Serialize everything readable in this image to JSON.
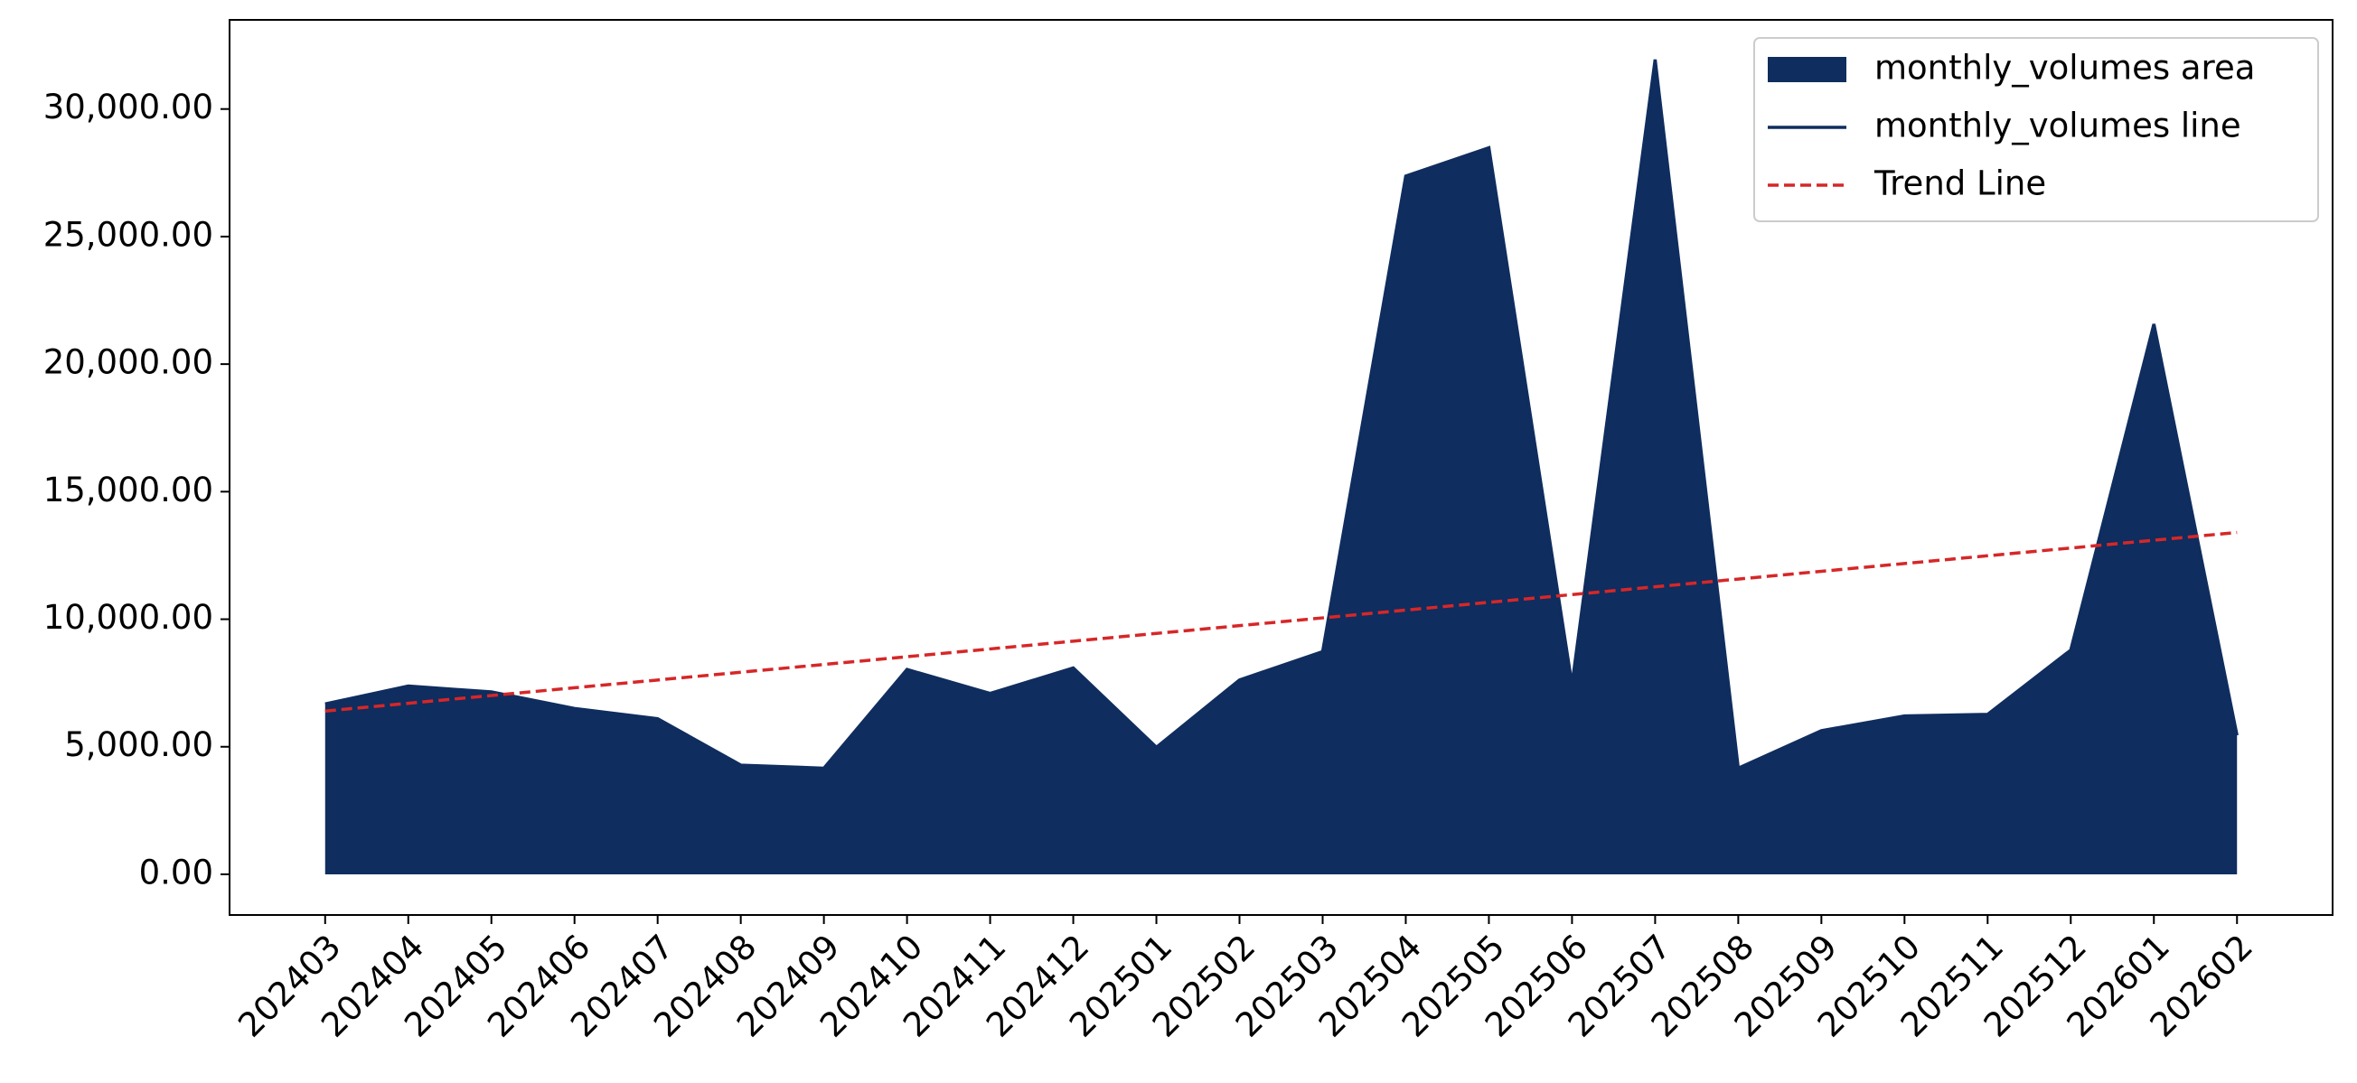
{
  "chart_data": {
    "type": "area",
    "categories": [
      "202403",
      "202404",
      "202405",
      "202406",
      "202407",
      "202408",
      "202409",
      "202410",
      "202411",
      "202412",
      "202501",
      "202502",
      "202503",
      "202504",
      "202505",
      "202506",
      "202507",
      "202508",
      "202509",
      "202510",
      "202511",
      "202512",
      "202601",
      "202602"
    ],
    "series": [
      {
        "name": "monthly_volumes area",
        "kind": "area",
        "color": "#0f2d5e",
        "values": [
          6680,
          7380,
          7150,
          6500,
          6100,
          4280,
          4160,
          8030,
          7090,
          8090,
          4980,
          7620,
          8730,
          27370,
          28480,
          7440,
          31940,
          4160,
          5630,
          6210,
          6270,
          8790,
          21570,
          5450
        ]
      },
      {
        "name": "monthly_volumes line",
        "kind": "line",
        "color": "#0f2d5e",
        "values": [
          6680,
          7380,
          7150,
          6500,
          6100,
          4280,
          4160,
          8030,
          7090,
          8090,
          4980,
          7620,
          8730,
          27370,
          28480,
          7440,
          31940,
          4160,
          5630,
          6210,
          6270,
          8790,
          21570,
          5450
        ]
      },
      {
        "name": "Trend Line",
        "kind": "dashed",
        "color": "#d62728",
        "values": [
          6400,
          6704,
          7009,
          7313,
          7617,
          7922,
          8226,
          8530,
          8835,
          9139,
          9443,
          9748,
          10052,
          10357,
          10661,
          10965,
          11270,
          11574,
          11878,
          12183,
          12487,
          12791,
          13096,
          13400
        ]
      }
    ],
    "ylim": [
      -1595,
      33495
    ],
    "yticks": [
      {
        "value": 0,
        "label": "0.00"
      },
      {
        "value": 5000,
        "label": "5,000.00"
      },
      {
        "value": 10000,
        "label": "10,000.00"
      },
      {
        "value": 15000,
        "label": "15,000.00"
      },
      {
        "value": 20000,
        "label": "20,000.00"
      },
      {
        "value": 25000,
        "label": "25,000.00"
      },
      {
        "value": 30000,
        "label": "30,000.00"
      }
    ],
    "grid": false,
    "legend": "upper right"
  }
}
